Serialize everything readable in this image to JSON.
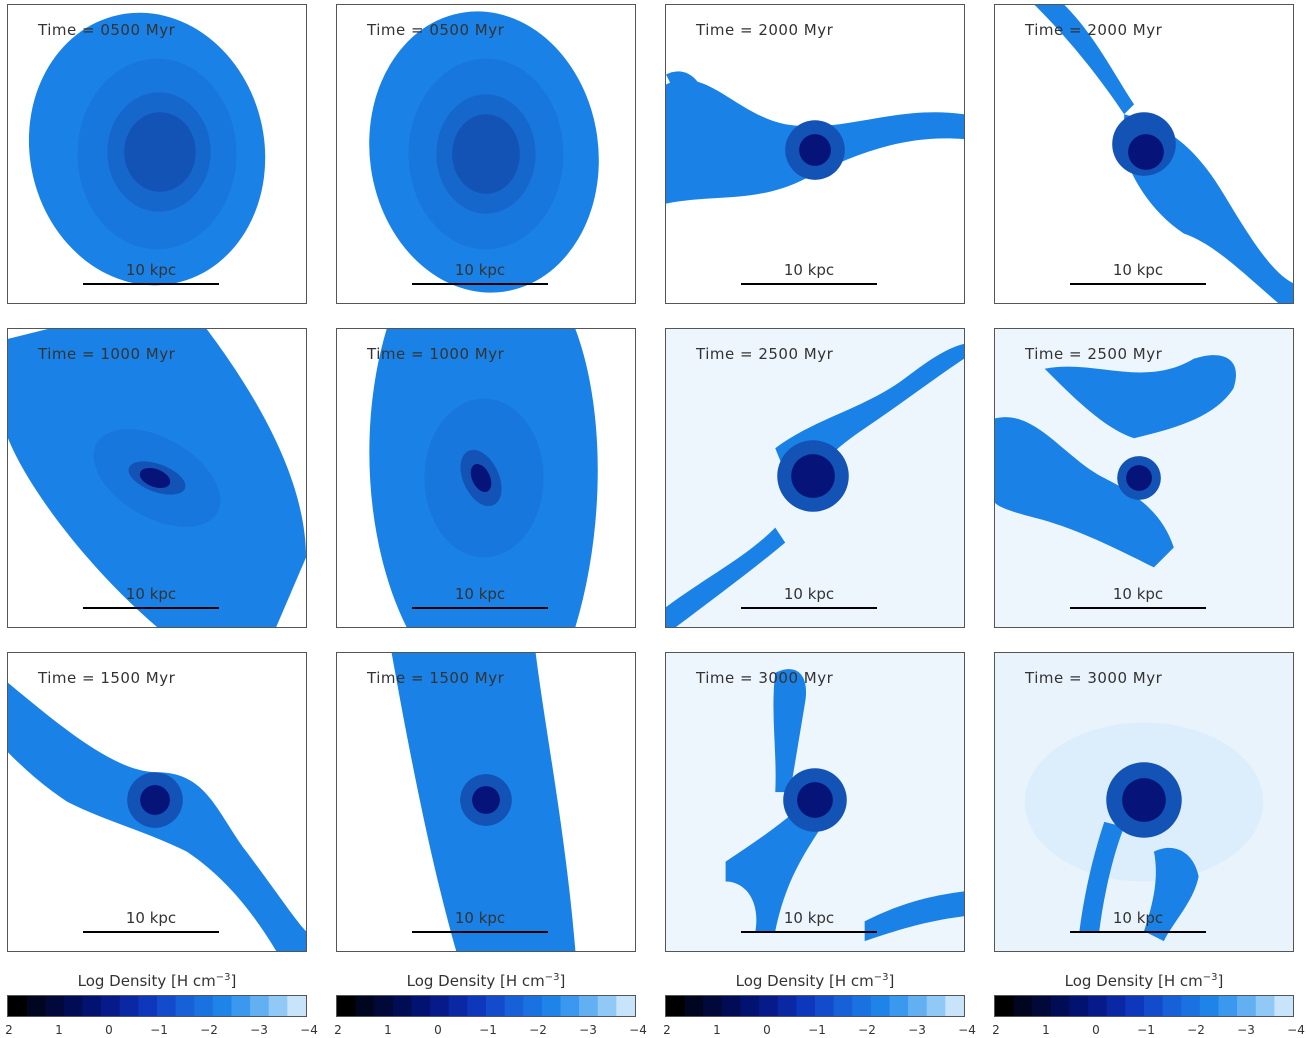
{
  "panels": [
    {
      "id": "p-r1c1",
      "time": "Time = 0500 Myr",
      "scale": "10 kpc"
    },
    {
      "id": "p-r1c2",
      "time": "Time = 0500 Myr",
      "scale": "10 kpc"
    },
    {
      "id": "p-r1c3",
      "time": "Time = 2000 Myr",
      "scale": "10 kpc"
    },
    {
      "id": "p-r1c4",
      "time": "Time = 2000 Myr",
      "scale": "10 kpc"
    },
    {
      "id": "p-r2c1",
      "time": "Time = 1000 Myr",
      "scale": "10 kpc"
    },
    {
      "id": "p-r2c2",
      "time": "Time = 1000 Myr",
      "scale": "10 kpc"
    },
    {
      "id": "p-r2c3",
      "time": "Time = 2500 Myr",
      "scale": "10 kpc"
    },
    {
      "id": "p-r2c4",
      "time": "Time = 2500 Myr",
      "scale": "10 kpc"
    },
    {
      "id": "p-r3c1",
      "time": "Time = 1500 Myr",
      "scale": "10 kpc"
    },
    {
      "id": "p-r3c2",
      "time": "Time = 1500 Myr",
      "scale": "10 kpc"
    },
    {
      "id": "p-r3c3",
      "time": "Time = 3000 Myr",
      "scale": "10 kpc"
    },
    {
      "id": "p-r3c4",
      "time": "Time = 3000 Myr",
      "scale": "10 kpc"
    }
  ],
  "colorbar": {
    "title_prefix": "Log Density [H cm",
    "title_exp": "−3",
    "title_suffix": "]",
    "ticks": [
      "2",
      "1",
      "0",
      "−1",
      "−2",
      "−3",
      "−4"
    ]
  },
  "colors": {
    "disk": "#1a82e6",
    "core": "#06147a",
    "background_diffuse": "#e8f3fc"
  }
}
